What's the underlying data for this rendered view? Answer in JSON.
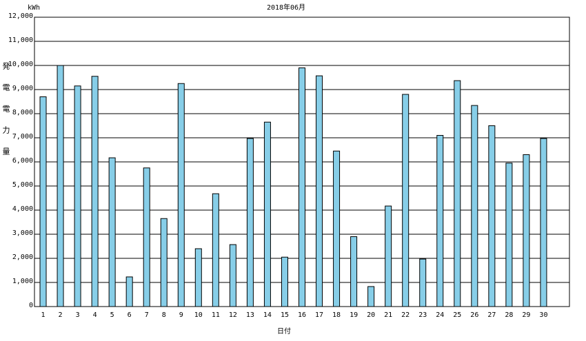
{
  "chart_data": {
    "type": "bar",
    "title": "2018年06月",
    "unit": "kWh",
    "y_label": "発電電力量",
    "x_label": "日付",
    "categories": [
      "1",
      "2",
      "3",
      "4",
      "5",
      "6",
      "7",
      "8",
      "9",
      "10",
      "11",
      "12",
      "13",
      "14",
      "15",
      "16",
      "17",
      "18",
      "19",
      "20",
      "21",
      "22",
      "23",
      "24",
      "25",
      "26",
      "27",
      "28",
      "29",
      "30"
    ],
    "values": [
      8700,
      10000,
      9150,
      9550,
      6170,
      1230,
      5750,
      3650,
      9250,
      2400,
      4680,
      2570,
      6970,
      7650,
      2050,
      9900,
      9570,
      6450,
      2900,
      830,
      4170,
      8800,
      1970,
      7100,
      9370,
      8340,
      7500,
      5950,
      6300,
      6970
    ],
    "color": "#87cee8",
    "ylim": [
      0,
      12000
    ],
    "yticks": [
      0,
      {
        "value": 1000,
        "label": "1,000"
      },
      {
        "value": 2000,
        "label": "2,000"
      },
      {
        "value": 3000,
        "label": "3,000"
      },
      {
        "value": 4000,
        "label": "4,000"
      },
      {
        "value": 5000,
        "label": "5,000"
      },
      {
        "value": 6000,
        "label": "6,000"
      },
      {
        "value": 7000,
        "label": "7,000"
      },
      {
        "value": 8000,
        "label": "8,000"
      },
      {
        "value": 9000,
        "label": "9,000"
      },
      {
        "value": 10000,
        "label": "10,000"
      },
      {
        "value": 11000,
        "label": "11,000"
      },
      {
        "value": 12000,
        "label": "12,000"
      }
    ],
    "grid": true
  }
}
